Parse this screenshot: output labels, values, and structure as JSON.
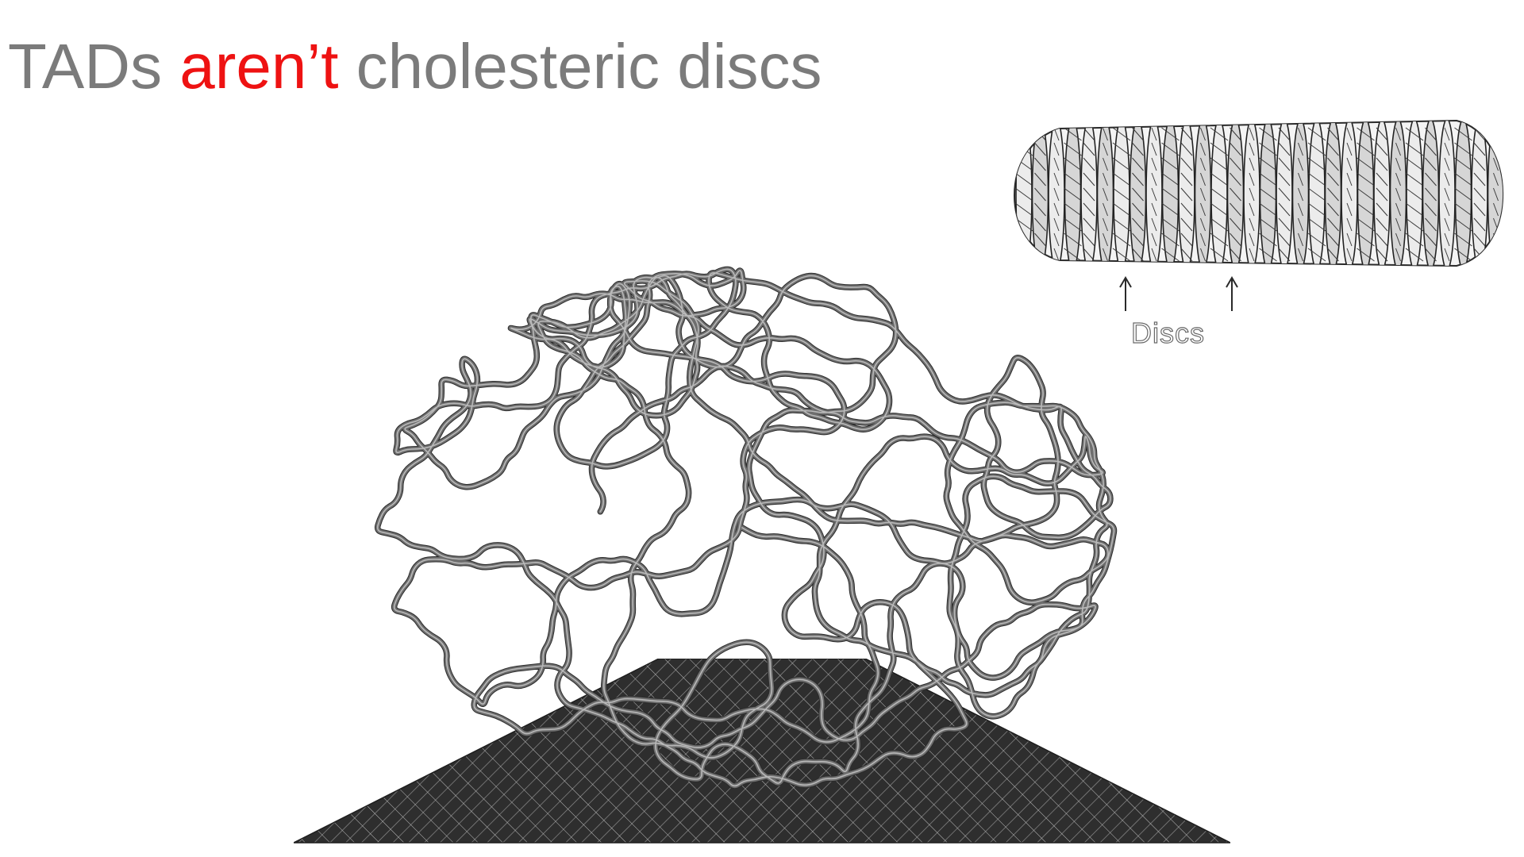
{
  "slide": {
    "title_part1": "TADs ",
    "title_emphasis": "aren’t",
    "title_part2": " cholesteric discs",
    "accent_color": "#ee1212",
    "title_color": "#7b7b7b"
  },
  "disc_figure": {
    "label": "Discs",
    "arrow_count": 2
  },
  "polymer_model": {
    "tube_color": "#6e6e6e"
  },
  "contact_map": {
    "shading_color": "#3a3a3a"
  }
}
